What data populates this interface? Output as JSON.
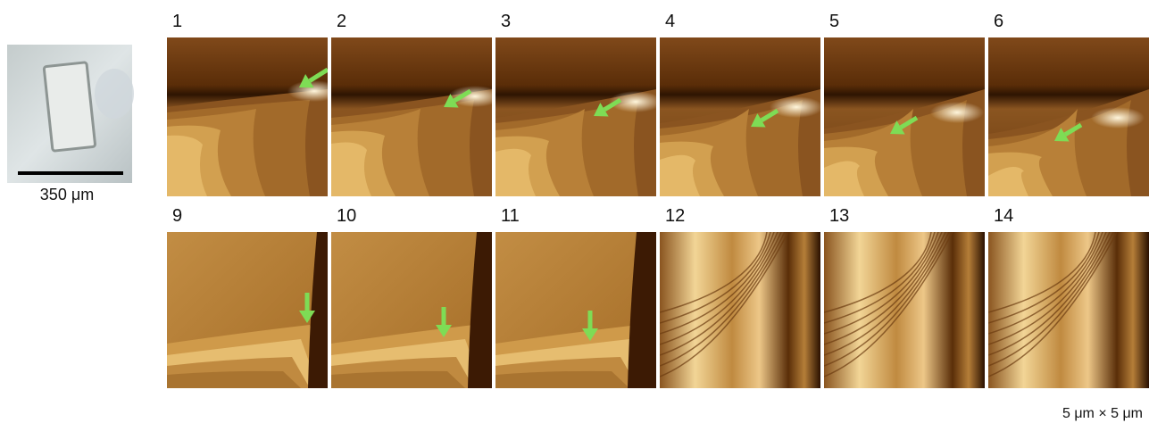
{
  "scale_bar_label": "350 μm",
  "panels": {
    "row1": [
      "1",
      "2",
      "3",
      "4",
      "5",
      "6"
    ],
    "row2": [
      "9",
      "10",
      "11",
      "12",
      "13",
      "14"
    ]
  },
  "scan_size": "5 μm × 5 μm"
}
